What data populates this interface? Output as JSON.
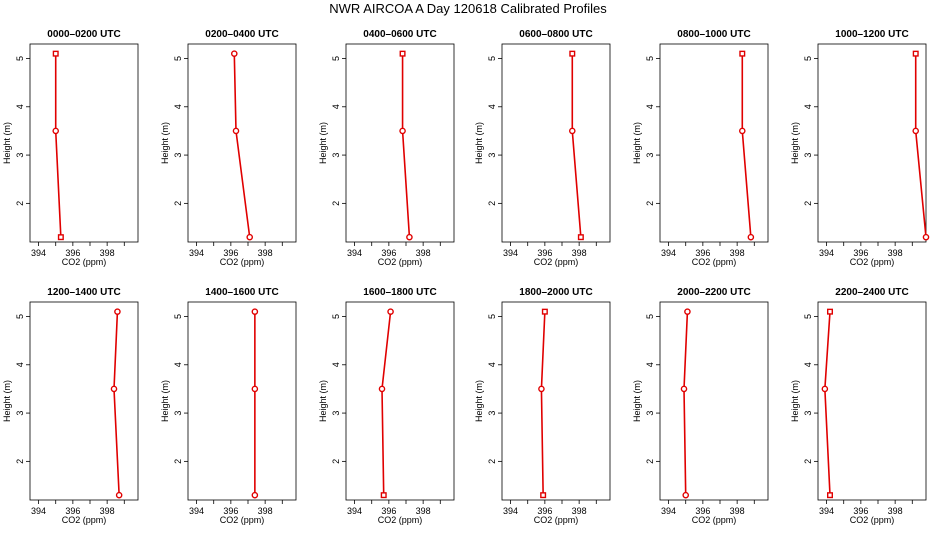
{
  "page_title": "NWR AIRCOA A  Day 120618  Calibrated Profiles",
  "series_color": "#e00000",
  "chart_data": [
    {
      "type": "line",
      "title": "0000–0200 UTC",
      "xlabel": "CO2 (ppm)",
      "ylabel": "Height (m)",
      "xlim": [
        393.5,
        399.8
      ],
      "ylim": [
        1.2,
        5.3
      ],
      "xticks": [
        394,
        396,
        398
      ],
      "xticks_minor": [
        395,
        397,
        399
      ],
      "yticks": [
        2,
        3,
        4,
        5
      ],
      "series": [
        {
          "x": [
            395.3,
            395.0,
            395.0
          ],
          "y": [
            1.3,
            3.5,
            5.1
          ],
          "markers": [
            "square",
            "circle",
            "square"
          ]
        }
      ]
    },
    {
      "type": "line",
      "title": "0200–0400 UTC",
      "xlabel": "CO2 (ppm)",
      "ylabel": "Height (m)",
      "xlim": [
        393.5,
        399.8
      ],
      "ylim": [
        1.2,
        5.3
      ],
      "xticks": [
        394,
        396,
        398
      ],
      "xticks_minor": [
        395,
        397,
        399
      ],
      "yticks": [
        2,
        3,
        4,
        5
      ],
      "series": [
        {
          "x": [
            397.1,
            396.3,
            396.2
          ],
          "y": [
            1.3,
            3.5,
            5.1
          ],
          "markers": [
            "circle",
            "circle",
            "circle"
          ]
        }
      ]
    },
    {
      "type": "line",
      "title": "0400–0600 UTC",
      "xlabel": "CO2 (ppm)",
      "ylabel": "Height (m)",
      "xlim": [
        393.5,
        399.8
      ],
      "ylim": [
        1.2,
        5.3
      ],
      "xticks": [
        394,
        396,
        398
      ],
      "xticks_minor": [
        395,
        397,
        399
      ],
      "yticks": [
        2,
        3,
        4,
        5
      ],
      "series": [
        {
          "x": [
            397.2,
            396.8,
            396.8
          ],
          "y": [
            1.3,
            3.5,
            5.1
          ],
          "markers": [
            "circle",
            "circle",
            "square"
          ]
        }
      ]
    },
    {
      "type": "line",
      "title": "0600–0800 UTC",
      "xlabel": "CO2 (ppm)",
      "ylabel": "Height (m)",
      "xlim": [
        393.5,
        399.8
      ],
      "ylim": [
        1.2,
        5.3
      ],
      "xticks": [
        394,
        396,
        398
      ],
      "xticks_minor": [
        395,
        397,
        399
      ],
      "yticks": [
        2,
        3,
        4,
        5
      ],
      "series": [
        {
          "x": [
            398.1,
            397.6,
            397.6
          ],
          "y": [
            1.3,
            3.5,
            5.1
          ],
          "markers": [
            "square",
            "circle",
            "square"
          ]
        }
      ]
    },
    {
      "type": "line",
      "title": "0800–1000 UTC",
      "xlabel": "CO2 (ppm)",
      "ylabel": "Height (m)",
      "xlim": [
        393.5,
        399.8
      ],
      "ylim": [
        1.2,
        5.3
      ],
      "xticks": [
        394,
        396,
        398
      ],
      "xticks_minor": [
        395,
        397,
        399
      ],
      "yticks": [
        2,
        3,
        4,
        5
      ],
      "series": [
        {
          "x": [
            398.8,
            398.3,
            398.3
          ],
          "y": [
            1.3,
            3.5,
            5.1
          ],
          "markers": [
            "circle",
            "circle",
            "square"
          ]
        }
      ]
    },
    {
      "type": "line",
      "title": "1000–1200 UTC",
      "xlabel": "CO2 (ppm)",
      "ylabel": "Height (m)",
      "xlim": [
        393.5,
        399.8
      ],
      "ylim": [
        1.2,
        5.3
      ],
      "xticks": [
        394,
        396,
        398
      ],
      "xticks_minor": [
        395,
        397,
        399
      ],
      "yticks": [
        2,
        3,
        4,
        5
      ],
      "series": [
        {
          "x": [
            399.8,
            399.2,
            399.2
          ],
          "y": [
            1.3,
            3.5,
            5.1
          ],
          "markers": [
            "circle",
            "circle",
            "square"
          ]
        }
      ]
    },
    {
      "type": "line",
      "title": "1200–1400 UTC",
      "xlabel": "CO2 (ppm)",
      "ylabel": "Height (m)",
      "xlim": [
        393.5,
        399.8
      ],
      "ylim": [
        1.2,
        5.3
      ],
      "xticks": [
        394,
        396,
        398
      ],
      "xticks_minor": [
        395,
        397,
        399
      ],
      "yticks": [
        2,
        3,
        4,
        5
      ],
      "series": [
        {
          "x": [
            398.7,
            398.4,
            398.6
          ],
          "y": [
            1.3,
            3.5,
            5.1
          ],
          "markers": [
            "circle",
            "circle",
            "circle"
          ]
        }
      ]
    },
    {
      "type": "line",
      "title": "1400–1600 UTC",
      "xlabel": "CO2 (ppm)",
      "ylabel": "Height (m)",
      "xlim": [
        393.5,
        399.8
      ],
      "ylim": [
        1.2,
        5.3
      ],
      "xticks": [
        394,
        396,
        398
      ],
      "xticks_minor": [
        395,
        397,
        399
      ],
      "yticks": [
        2,
        3,
        4,
        5
      ],
      "series": [
        {
          "x": [
            397.4,
            397.4,
            397.4
          ],
          "y": [
            1.3,
            3.5,
            5.1
          ],
          "markers": [
            "circle",
            "circle",
            "circle"
          ]
        }
      ]
    },
    {
      "type": "line",
      "title": "1600–1800 UTC",
      "xlabel": "CO2 (ppm)",
      "ylabel": "Height (m)",
      "xlim": [
        393.5,
        399.8
      ],
      "ylim": [
        1.2,
        5.3
      ],
      "xticks": [
        394,
        396,
        398
      ],
      "xticks_minor": [
        395,
        397,
        399
      ],
      "yticks": [
        2,
        3,
        4,
        5
      ],
      "series": [
        {
          "x": [
            395.7,
            395.6,
            396.1
          ],
          "y": [
            1.3,
            3.5,
            5.1
          ],
          "markers": [
            "square",
            "circle",
            "circle"
          ]
        }
      ]
    },
    {
      "type": "line",
      "title": "1800–2000 UTC",
      "xlabel": "CO2 (ppm)",
      "ylabel": "Height (m)",
      "xlim": [
        393.5,
        399.8
      ],
      "ylim": [
        1.2,
        5.3
      ],
      "xticks": [
        394,
        396,
        398
      ],
      "xticks_minor": [
        395,
        397,
        399
      ],
      "yticks": [
        2,
        3,
        4,
        5
      ],
      "series": [
        {
          "x": [
            395.9,
            395.8,
            396.0
          ],
          "y": [
            1.3,
            3.5,
            5.1
          ],
          "markers": [
            "square",
            "circle",
            "square"
          ]
        }
      ]
    },
    {
      "type": "line",
      "title": "2000–2200 UTC",
      "xlabel": "CO2 (ppm)",
      "ylabel": "Height (m)",
      "xlim": [
        393.5,
        399.8
      ],
      "ylim": [
        1.2,
        5.3
      ],
      "xticks": [
        394,
        396,
        398
      ],
      "xticks_minor": [
        395,
        397,
        399
      ],
      "yticks": [
        2,
        3,
        4,
        5
      ],
      "series": [
        {
          "x": [
            395.0,
            394.9,
            395.1
          ],
          "y": [
            1.3,
            3.5,
            5.1
          ],
          "markers": [
            "circle",
            "circle",
            "circle"
          ]
        }
      ]
    },
    {
      "type": "line",
      "title": "2200–2400 UTC",
      "xlabel": "CO2 (ppm)",
      "ylabel": "Height (m)",
      "xlim": [
        393.5,
        399.8
      ],
      "ylim": [
        1.2,
        5.3
      ],
      "xticks": [
        394,
        396,
        398
      ],
      "xticks_minor": [
        395,
        397,
        399
      ],
      "yticks": [
        2,
        3,
        4,
        5
      ],
      "series": [
        {
          "x": [
            394.2,
            393.9,
            394.2
          ],
          "y": [
            1.3,
            3.5,
            5.1
          ],
          "markers": [
            "square",
            "circle",
            "square"
          ]
        }
      ]
    }
  ]
}
